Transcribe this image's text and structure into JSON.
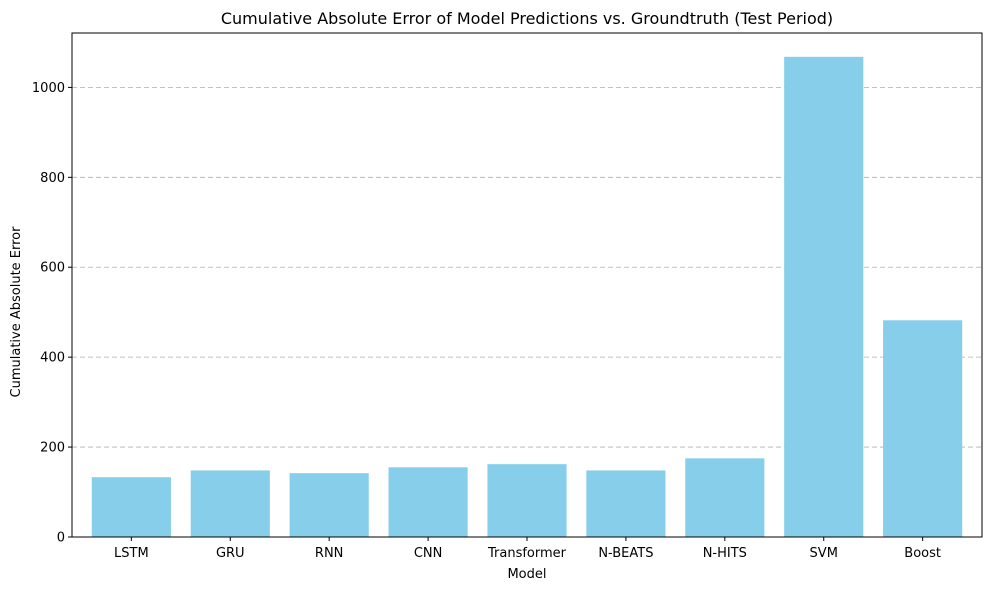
{
  "chart_data": {
    "type": "bar",
    "title": "Cumulative Absolute Error of Model Predictions vs. Groundtruth (Test Period)",
    "xlabel": "Model",
    "ylabel": "Cumulative Absolute Error",
    "categories": [
      "LSTM",
      "GRU",
      "RNN",
      "CNN",
      "Transformer",
      "N-BEATS",
      "N-HITS",
      "SVM",
      "Boost"
    ],
    "values": [
      133,
      148,
      142,
      155,
      162,
      148,
      175,
      1068,
      482
    ],
    "ylim": [
      0,
      1121
    ],
    "yticks": [
      0,
      200,
      400,
      600,
      800,
      1000
    ],
    "grid": "y-dashed",
    "bar_color": "#87ceeb"
  }
}
